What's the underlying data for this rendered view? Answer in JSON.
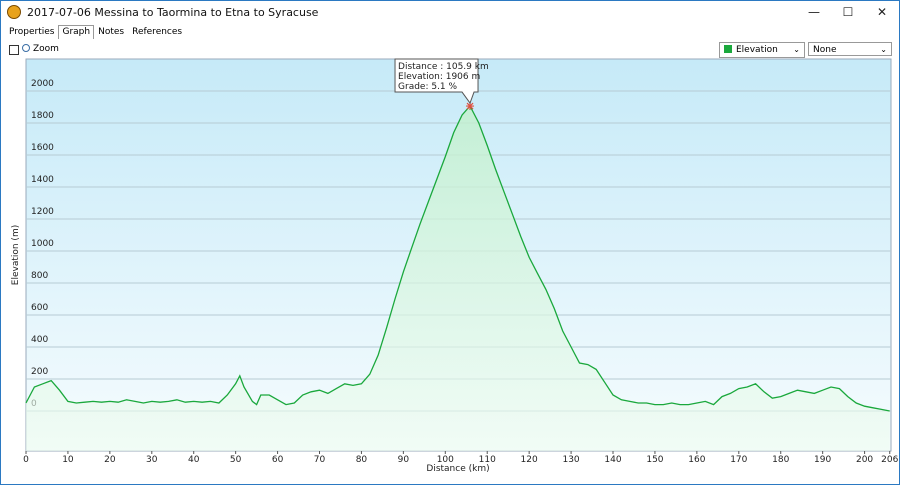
{
  "window": {
    "title": "2017-07-06 Messina to Taormina to Etna to Syracuse"
  },
  "tabs": [
    "Properties",
    "Graph",
    "Notes",
    "References"
  ],
  "selected_tab": 1,
  "toolbar": {
    "zoom_label": "Zoom",
    "second_selector": "None"
  },
  "chart_data": {
    "type": "line",
    "x_label": "Distance  (km)",
    "y_label": "Elevation (m)",
    "x": [
      0,
      2,
      4,
      6,
      8,
      10,
      12,
      14,
      16,
      18,
      20,
      22,
      24,
      26,
      28,
      30,
      32,
      34,
      36,
      38,
      40,
      42,
      44,
      46,
      48,
      50,
      51,
      52,
      54,
      55,
      56,
      58,
      60,
      62,
      64,
      66,
      68,
      70,
      72,
      74,
      76,
      78,
      80,
      82,
      84,
      86,
      88,
      90,
      92,
      94,
      96,
      98,
      100,
      102,
      104,
      105.9,
      108,
      110,
      112,
      114,
      116,
      118,
      120,
      122,
      124,
      126,
      128,
      130,
      132,
      134,
      136,
      138,
      140,
      142,
      144,
      146,
      148,
      150,
      152,
      154,
      156,
      158,
      160,
      162,
      164,
      166,
      168,
      170,
      172,
      174,
      176,
      178,
      180,
      182,
      184,
      186,
      188,
      190,
      192,
      194,
      196,
      198,
      200,
      202,
      204,
      206
    ],
    "series": [
      {
        "name": "Elevation",
        "color": "#1aa83c",
        "values": [
          50,
          150,
          170,
          190,
          130,
          60,
          50,
          55,
          60,
          55,
          60,
          55,
          70,
          60,
          50,
          60,
          55,
          60,
          70,
          55,
          60,
          55,
          60,
          50,
          100,
          170,
          220,
          150,
          60,
          40,
          100,
          100,
          70,
          40,
          50,
          100,
          120,
          130,
          110,
          140,
          170,
          160,
          170,
          230,
          350,
          520,
          700,
          870,
          1020,
          1170,
          1310,
          1450,
          1590,
          1740,
          1850,
          1906,
          1800,
          1660,
          1510,
          1370,
          1230,
          1090,
          960,
          860,
          760,
          640,
          500,
          400,
          300,
          290,
          260,
          180,
          100,
          70,
          60,
          50,
          50,
          40,
          40,
          50,
          40,
          40,
          50,
          60,
          40,
          90,
          110,
          140,
          150,
          170,
          120,
          80,
          90,
          110,
          130,
          120,
          110,
          130,
          150,
          140,
          90,
          50,
          30,
          20,
          10,
          0
        ]
      }
    ],
    "xlim": [
      0,
      206.3
    ],
    "ylim": [
      -250,
      2200
    ],
    "xticks": [
      0,
      10,
      20,
      30,
      40,
      50,
      60,
      70,
      80,
      90,
      100,
      110,
      120,
      130,
      140,
      150,
      160,
      170,
      180,
      190,
      200,
      206
    ],
    "yticks": [
      0,
      200,
      400,
      600,
      800,
      1000,
      1200,
      1400,
      1600,
      1800,
      2000
    ],
    "grid": true,
    "highlight": {
      "x": 105.9,
      "y": 1906,
      "lines": [
        "Distance : 105.9 km",
        "Elevation: 1906 m",
        "Grade: 5.1 %"
      ]
    }
  }
}
